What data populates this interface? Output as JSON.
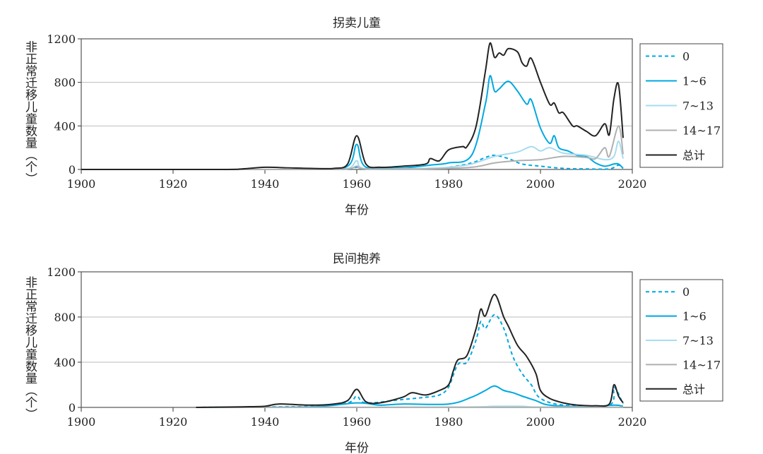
{
  "chart_data": [
    {
      "type": "line",
      "title": "拐卖儿童",
      "xlabel": "年份",
      "ylabel": "非正常迁移儿童数量（个）",
      "xlim": [
        1900,
        2020
      ],
      "ylim": [
        0,
        1200
      ],
      "xticks": [
        "1900",
        "1920",
        "1940",
        "1960",
        "1980",
        "2000",
        "2020"
      ],
      "yticks": [
        "0",
        "400",
        "800",
        "1200"
      ],
      "grid": "horizontal",
      "legend": "right",
      "series": [
        {
          "name": "0",
          "style": "dashed",
          "color": "#00a8e0",
          "points": [
            [
              1900,
              0
            ],
            [
              1950,
              0
            ],
            [
              1958,
              5
            ],
            [
              1960,
              20
            ],
            [
              1962,
              5
            ],
            [
              1975,
              5
            ],
            [
              1980,
              20
            ],
            [
              1985,
              60
            ],
            [
              1988,
              110
            ],
            [
              1990,
              130
            ],
            [
              1993,
              100
            ],
            [
              1996,
              50
            ],
            [
              2000,
              30
            ],
            [
              2005,
              10
            ],
            [
              2010,
              5
            ],
            [
              2015,
              5
            ],
            [
              2017,
              40
            ],
            [
              2018,
              10
            ]
          ]
        },
        {
          "name": "1~6",
          "style": "solid",
          "color": "#00a8e0",
          "points": [
            [
              1900,
              0
            ],
            [
              1950,
              0
            ],
            [
              1958,
              30
            ],
            [
              1960,
              230
            ],
            [
              1962,
              20
            ],
            [
              1970,
              15
            ],
            [
              1976,
              40
            ],
            [
              1980,
              60
            ],
            [
              1985,
              130
            ],
            [
              1988,
              600
            ],
            [
              1989,
              860
            ],
            [
              1990,
              720
            ],
            [
              1991,
              740
            ],
            [
              1993,
              810
            ],
            [
              1995,
              720
            ],
            [
              1997,
              600
            ],
            [
              1998,
              640
            ],
            [
              2000,
              380
            ],
            [
              2002,
              240
            ],
            [
              2003,
              310
            ],
            [
              2004,
              200
            ],
            [
              2006,
              170
            ],
            [
              2008,
              130
            ],
            [
              2010,
              120
            ],
            [
              2012,
              60
            ],
            [
              2014,
              30
            ],
            [
              2016,
              50
            ],
            [
              2017,
              50
            ],
            [
              2018,
              10
            ]
          ]
        },
        {
          "name": "7~13",
          "style": "solid",
          "color": "#a6dcef",
          "points": [
            [
              1900,
              0
            ],
            [
              1950,
              0
            ],
            [
              1958,
              10
            ],
            [
              1960,
              80
            ],
            [
              1962,
              5
            ],
            [
              1975,
              10
            ],
            [
              1980,
              20
            ],
            [
              1985,
              50
            ],
            [
              1990,
              120
            ],
            [
              1995,
              160
            ],
            [
              1998,
              210
            ],
            [
              2000,
              170
            ],
            [
              2002,
              200
            ],
            [
              2005,
              150
            ],
            [
              2010,
              130
            ],
            [
              2014,
              90
            ],
            [
              2016,
              120
            ],
            [
              2017,
              260
            ],
            [
              2018,
              100
            ]
          ]
        },
        {
          "name": "14~17",
          "style": "solid",
          "color": "#b0b0b0",
          "points": [
            [
              1900,
              0
            ],
            [
              1950,
              0
            ],
            [
              1958,
              5
            ],
            [
              1960,
              30
            ],
            [
              1962,
              5
            ],
            [
              1975,
              5
            ],
            [
              1985,
              20
            ],
            [
              1990,
              60
            ],
            [
              1995,
              80
            ],
            [
              2000,
              90
            ],
            [
              2005,
              120
            ],
            [
              2010,
              110
            ],
            [
              2012,
              100
            ],
            [
              2014,
              200
            ],
            [
              2015,
              120
            ],
            [
              2017,
              400
            ],
            [
              2018,
              140
            ]
          ]
        },
        {
          "name": "总计",
          "style": "solid",
          "color": "#222222",
          "points": [
            [
              1900,
              0
            ],
            [
              1930,
              0
            ],
            [
              1935,
              5
            ],
            [
              1940,
              20
            ],
            [
              1945,
              15
            ],
            [
              1950,
              10
            ],
            [
              1955,
              10
            ],
            [
              1958,
              50
            ],
            [
              1960,
              310
            ],
            [
              1962,
              50
            ],
            [
              1965,
              20
            ],
            [
              1970,
              30
            ],
            [
              1975,
              50
            ],
            [
              1976,
              100
            ],
            [
              1978,
              80
            ],
            [
              1980,
              180
            ],
            [
              1983,
              210
            ],
            [
              1984,
              210
            ],
            [
              1986,
              400
            ],
            [
              1988,
              900
            ],
            [
              1989,
              1160
            ],
            [
              1990,
              1030
            ],
            [
              1991,
              1070
            ],
            [
              1992,
              1050
            ],
            [
              1993,
              1110
            ],
            [
              1995,
              1080
            ],
            [
              1996,
              980
            ],
            [
              1997,
              950
            ],
            [
              1998,
              1020
            ],
            [
              2000,
              800
            ],
            [
              2002,
              600
            ],
            [
              2003,
              610
            ],
            [
              2004,
              520
            ],
            [
              2005,
              520
            ],
            [
              2007,
              400
            ],
            [
              2008,
              400
            ],
            [
              2010,
              350
            ],
            [
              2012,
              310
            ],
            [
              2014,
              420
            ],
            [
              2015,
              320
            ],
            [
              2016,
              650
            ],
            [
              2017,
              780
            ],
            [
              2018,
              290
            ]
          ]
        }
      ]
    },
    {
      "type": "line",
      "title": "民间抱养",
      "xlabel": "年份",
      "ylabel": "非正常迁移儿童数量（个）",
      "xlim": [
        1900,
        2020
      ],
      "ylim": [
        0,
        1200
      ],
      "xticks": [
        "1900",
        "1920",
        "1940",
        "1960",
        "1980",
        "2000",
        "2020"
      ],
      "yticks": [
        "0",
        "400",
        "800",
        "1200"
      ],
      "grid": "horizontal",
      "legend": "right",
      "series": [
        {
          "name": "0",
          "style": "dashed",
          "color": "#00a8e0",
          "points": [
            [
              1925,
              0
            ],
            [
              1940,
              5
            ],
            [
              1950,
              10
            ],
            [
              1958,
              40
            ],
            [
              1960,
              100
            ],
            [
              1962,
              40
            ],
            [
              1970,
              70
            ],
            [
              1975,
              90
            ],
            [
              1978,
              110
            ],
            [
              1980,
              180
            ],
            [
              1982,
              380
            ],
            [
              1984,
              400
            ],
            [
              1986,
              600
            ],
            [
              1987,
              760
            ],
            [
              1988,
              700
            ],
            [
              1990,
              820
            ],
            [
              1992,
              700
            ],
            [
              1994,
              450
            ],
            [
              1996,
              300
            ],
            [
              1998,
              200
            ],
            [
              2000,
              80
            ],
            [
              2005,
              20
            ],
            [
              2015,
              20
            ],
            [
              2016,
              180
            ],
            [
              2018,
              30
            ]
          ]
        },
        {
          "name": "1~6",
          "style": "solid",
          "color": "#00a8e0",
          "points": [
            [
              1925,
              0
            ],
            [
              1950,
              5
            ],
            [
              1960,
              40
            ],
            [
              1965,
              20
            ],
            [
              1970,
              30
            ],
            [
              1980,
              30
            ],
            [
              1985,
              90
            ],
            [
              1988,
              150
            ],
            [
              1990,
              190
            ],
            [
              1992,
              150
            ],
            [
              1994,
              130
            ],
            [
              1996,
              100
            ],
            [
              1999,
              60
            ],
            [
              2002,
              20
            ],
            [
              2010,
              5
            ],
            [
              2016,
              20
            ],
            [
              2018,
              10
            ]
          ]
        },
        {
          "name": "7~13",
          "style": "solid",
          "color": "#a6dcef",
          "points": [
            [
              1925,
              0
            ],
            [
              1980,
              3
            ],
            [
              1990,
              10
            ],
            [
              1996,
              10
            ],
            [
              2000,
              3
            ],
            [
              2018,
              2
            ]
          ]
        },
        {
          "name": "14~17",
          "style": "solid",
          "color": "#b0b0b0",
          "points": [
            [
              1925,
              0
            ],
            [
              2018,
              1
            ]
          ]
        },
        {
          "name": "总计",
          "style": "solid",
          "color": "#222222",
          "points": [
            [
              1925,
              0
            ],
            [
              1935,
              5
            ],
            [
              1940,
              10
            ],
            [
              1943,
              30
            ],
            [
              1950,
              20
            ],
            [
              1955,
              30
            ],
            [
              1958,
              60
            ],
            [
              1960,
              160
            ],
            [
              1962,
              50
            ],
            [
              1965,
              40
            ],
            [
              1970,
              90
            ],
            [
              1972,
              130
            ],
            [
              1975,
              110
            ],
            [
              1978,
              150
            ],
            [
              1980,
              200
            ],
            [
              1981,
              320
            ],
            [
              1982,
              420
            ],
            [
              1984,
              460
            ],
            [
              1986,
              700
            ],
            [
              1987,
              870
            ],
            [
              1988,
              810
            ],
            [
              1990,
              1000
            ],
            [
              1992,
              800
            ],
            [
              1993,
              720
            ],
            [
              1995,
              550
            ],
            [
              1997,
              450
            ],
            [
              1999,
              300
            ],
            [
              2000,
              150
            ],
            [
              2002,
              80
            ],
            [
              2005,
              40
            ],
            [
              2008,
              20
            ],
            [
              2012,
              15
            ],
            [
              2015,
              30
            ],
            [
              2016,
              200
            ],
            [
              2017,
              100
            ],
            [
              2018,
              40
            ]
          ]
        }
      ]
    }
  ]
}
